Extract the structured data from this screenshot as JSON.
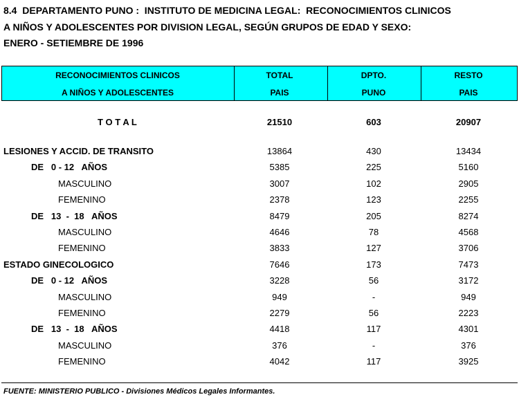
{
  "title": [
    "8.4  DEPARTAMENTO PUNO :  INSTITUTO DE MEDICINA LEGAL:  RECONOCIMIENTOS CLINICOS",
    "A NIÑOS Y ADOLESCENTES POR DIVISION LEGAL, SEGÚN GRUPOS DE EDAD Y SEXO:",
    "ENERO - SETIEMBRE DE 1996"
  ],
  "header": [
    [
      "RECONOCIMIENTOS CLINICOS",
      "A NIÑOS Y ADOLESCENTES"
    ],
    [
      "TOTAL",
      "PAIS"
    ],
    [
      "DPTO.",
      "PUNO"
    ],
    [
      "RESTO",
      "PAIS"
    ]
  ],
  "total": {
    "label": "T O T A L",
    "values": [
      21510,
      603,
      20907
    ]
  },
  "sections": [
    {
      "label": "LESIONES Y ACCID. DE TRANSITO",
      "values": [
        13864,
        430,
        13434
      ],
      "groups": [
        {
          "label": "DE   0 - 12   AÑOS",
          "values": [
            5385,
            225,
            5160
          ],
          "rows": [
            {
              "label": "MASCULINO",
              "values": [
                3007,
                102,
                2905
              ]
            },
            {
              "label": "FEMENINO",
              "values": [
                2378,
                123,
                2255
              ]
            }
          ]
        },
        {
          "label": "DE   13  -  18   AÑOS",
          "values": [
            8479,
            205,
            8274
          ],
          "rows": [
            {
              "label": "MASCULINO",
              "values": [
                4646,
                78,
                4568
              ]
            },
            {
              "label": "FEMENINO",
              "values": [
                3833,
                127,
                3706
              ]
            }
          ]
        }
      ]
    },
    {
      "label": "ESTADO GINECOLOGICO",
      "values": [
        7646,
        173,
        7473
      ],
      "groups": [
        {
          "label": "DE   0 - 12   AÑOS",
          "values": [
            3228,
            56,
            3172
          ],
          "rows": [
            {
              "label": "MASCULINO",
              "values": [
                949,
                "-",
                949
              ]
            },
            {
              "label": "FEMENINO",
              "values": [
                2279,
                56,
                2223
              ]
            }
          ]
        },
        {
          "label": "DE   13  -  18   AÑOS",
          "values": [
            4418,
            117,
            4301
          ],
          "rows": [
            {
              "label": "MASCULINO",
              "values": [
                376,
                "-",
                376
              ]
            },
            {
              "label": "FEMENINO",
              "values": [
                4042,
                117,
                3925
              ]
            }
          ]
        }
      ]
    }
  ],
  "footer": "FUENTE: MINISTERIO PUBLICO - Divisiones Médicos Legales Informantes."
}
